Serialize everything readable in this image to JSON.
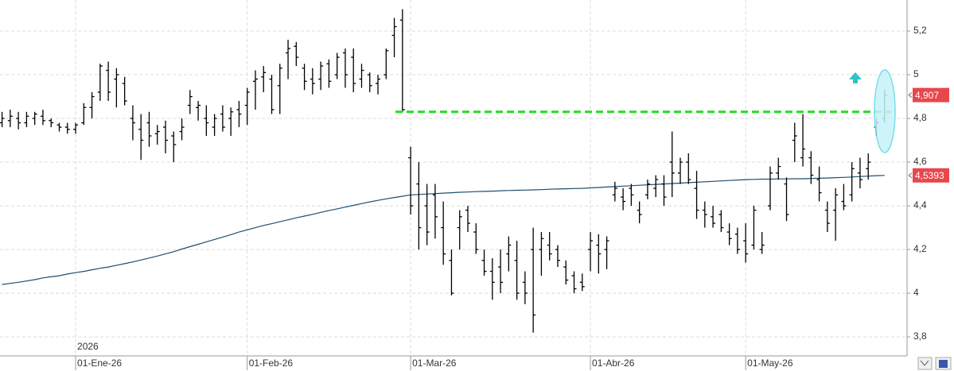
{
  "chart_data": {
    "type": "ohlc",
    "annotation": "2026",
    "categories": [
      null,
      null,
      null,
      null,
      null,
      null,
      null,
      null,
      null,
      "01-Ene-26",
      null,
      null,
      null,
      null,
      null,
      null,
      null,
      null,
      null,
      null,
      null,
      null,
      null,
      null,
      null,
      null,
      null,
      null,
      null,
      null,
      "01-Feb-26",
      null,
      null,
      null,
      null,
      null,
      null,
      null,
      null,
      null,
      null,
      null,
      null,
      null,
      null,
      null,
      null,
      null,
      null,
      null,
      "01-Mar-26",
      null,
      null,
      null,
      null,
      null,
      null,
      null,
      null,
      null,
      null,
      null,
      null,
      null,
      null,
      null,
      null,
      null,
      null,
      null,
      null,
      null,
      "01-Abr-26",
      null,
      null,
      null,
      null,
      null,
      null,
      null,
      null,
      null,
      null,
      null,
      null,
      null,
      null,
      null,
      null,
      null,
      null,
      "01-May-26",
      null,
      null,
      null,
      null,
      null,
      null,
      null,
      null,
      null,
      null,
      null,
      null,
      null,
      null,
      null,
      null,
      null
    ],
    "open": [
      4.78,
      4.79,
      4.8,
      4.78,
      4.8,
      4.81,
      4.79,
      4.77,
      4.76,
      4.75,
      4.78,
      4.85,
      4.92,
      5.02,
      4.98,
      4.96,
      4.8,
      4.75,
      4.78,
      4.73,
      4.76,
      4.72,
      4.74,
      4.86,
      4.85,
      4.8,
      4.76,
      4.82,
      4.8,
      4.84,
      4.86,
      4.97,
      4.99,
      4.98,
      4.95,
      5.1,
      5.13,
      5.03,
      4.98,
      4.98,
      5.05,
      5.0,
      5.1,
      5.08,
      4.98,
      5.0,
      4.96,
      5.0,
      5.18,
      5.25,
      4.62,
      4.5,
      4.4,
      4.45,
      4.3,
      4.15,
      4.3,
      4.38,
      4.28,
      4.15,
      4.1,
      4.12,
      4.18,
      4.15,
      4.05,
      4.2,
      4.2,
      4.22,
      4.2,
      4.12,
      4.08,
      4.05,
      4.2,
      4.22,
      4.2,
      4.45,
      4.44,
      4.48,
      4.38,
      4.45,
      4.48,
      4.5,
      4.6,
      4.55,
      4.6,
      4.48,
      4.38,
      4.35,
      4.36,
      4.28,
      4.27,
      4.24,
      4.22,
      4.2,
      4.4,
      4.55,
      4.5,
      4.7,
      4.62,
      4.62,
      4.52,
      4.38,
      4.38,
      4.42,
      4.45,
      4.55,
      4.57,
      4.76,
      4.8
    ],
    "high": [
      4.83,
      4.84,
      4.83,
      4.83,
      4.83,
      4.84,
      4.8,
      4.78,
      4.78,
      4.78,
      4.87,
      4.92,
      5.05,
      5.06,
      5.03,
      4.99,
      4.86,
      4.82,
      4.83,
      4.77,
      4.79,
      4.74,
      4.8,
      4.93,
      4.88,
      4.86,
      4.82,
      4.86,
      4.85,
      4.88,
      4.94,
      5.02,
      5.04,
      5.0,
      5.05,
      5.16,
      5.15,
      5.05,
      5.03,
      5.06,
      5.07,
      5.1,
      5.12,
      5.12,
      5.05,
      5.01,
      5.0,
      5.12,
      5.26,
      5.3,
      4.67,
      4.6,
      4.5,
      4.5,
      4.42,
      4.2,
      4.38,
      4.4,
      4.32,
      4.2,
      4.16,
      4.2,
      4.26,
      4.24,
      4.1,
      4.3,
      4.28,
      4.28,
      4.22,
      4.15,
      4.1,
      4.09,
      4.28,
      4.27,
      4.26,
      4.51,
      4.48,
      4.5,
      4.42,
      4.52,
      4.54,
      4.54,
      4.74,
      4.62,
      4.64,
      4.56,
      4.42,
      4.4,
      4.38,
      4.32,
      4.3,
      4.32,
      4.4,
      4.28,
      4.58,
      4.62,
      4.53,
      4.78,
      4.82,
      4.65,
      4.58,
      4.42,
      4.48,
      4.5,
      4.6,
      4.62,
      4.64,
      4.8,
      4.93
    ],
    "low": [
      4.76,
      4.76,
      4.75,
      4.76,
      4.77,
      4.77,
      4.76,
      4.74,
      4.73,
      4.73,
      4.77,
      4.8,
      4.88,
      4.88,
      4.85,
      4.86,
      4.7,
      4.61,
      4.67,
      4.68,
      4.64,
      4.6,
      4.7,
      4.82,
      4.79,
      4.72,
      4.72,
      4.74,
      4.72,
      4.76,
      4.77,
      4.84,
      4.92,
      4.82,
      4.82,
      4.98,
      5.04,
      4.93,
      4.91,
      4.93,
      4.94,
      4.98,
      4.94,
      4.92,
      4.94,
      4.92,
      4.91,
      4.98,
      5.08,
      4.83,
      4.36,
      4.2,
      4.22,
      4.25,
      4.13,
      3.99,
      4.2,
      4.28,
      4.18,
      4.08,
      3.97,
      4.0,
      4.1,
      3.97,
      3.95,
      3.82,
      4.08,
      4.15,
      4.12,
      4.04,
      4.0,
      4.01,
      4.1,
      4.09,
      4.11,
      4.42,
      4.38,
      4.4,
      4.32,
      4.43,
      4.44,
      4.4,
      4.44,
      4.5,
      4.5,
      4.34,
      4.3,
      4.3,
      4.28,
      4.22,
      4.18,
      4.14,
      4.2,
      4.18,
      4.38,
      4.52,
      4.33,
      4.6,
      4.58,
      4.5,
      4.42,
      4.28,
      4.24,
      4.38,
      4.42,
      4.48,
      4.52,
      4.72,
      4.78
    ],
    "close": [
      4.8,
      4.81,
      4.78,
      4.81,
      4.82,
      4.79,
      4.78,
      4.76,
      4.75,
      4.77,
      4.85,
      4.9,
      5.04,
      4.92,
      5.0,
      4.88,
      4.78,
      4.7,
      4.72,
      4.74,
      4.7,
      4.68,
      4.76,
      4.9,
      4.86,
      4.78,
      4.8,
      4.76,
      4.83,
      4.82,
      4.92,
      4.98,
      5.01,
      4.84,
      5.03,
      5.12,
      5.08,
      4.97,
      4.96,
      5.04,
      4.97,
      5.08,
      5.0,
      4.96,
      5.02,
      4.95,
      4.98,
      5.11,
      5.22,
      4.84,
      4.4,
      4.3,
      4.28,
      4.35,
      4.18,
      4.0,
      4.35,
      4.32,
      4.2,
      4.1,
      4.05,
      4.05,
      4.22,
      4.0,
      4.0,
      3.9,
      4.25,
      4.18,
      4.15,
      4.06,
      4.02,
      4.03,
      4.24,
      4.18,
      4.24,
      4.48,
      4.42,
      4.45,
      4.36,
      4.5,
      4.52,
      4.44,
      4.55,
      4.6,
      4.52,
      4.38,
      4.36,
      4.32,
      4.3,
      4.25,
      4.2,
      4.18,
      4.38,
      4.22,
      4.55,
      4.58,
      4.36,
      4.72,
      4.66,
      4.54,
      4.46,
      4.32,
      4.45,
      4.4,
      4.57,
      4.52,
      4.6,
      4.78,
      4.907
    ],
    "bar_color": "#000000",
    "moving_average": {
      "color": "#1f4e6e",
      "values": [
        4.04,
        4.045,
        4.05,
        4.056,
        4.062,
        4.07,
        4.075,
        4.08,
        4.088,
        4.094,
        4.1,
        4.107,
        4.114,
        4.12,
        4.128,
        4.135,
        4.143,
        4.152,
        4.161,
        4.17,
        4.18,
        4.19,
        4.202,
        4.213,
        4.224,
        4.235,
        4.246,
        4.257,
        4.268,
        4.28,
        4.29,
        4.3,
        4.31,
        4.318,
        4.327,
        4.336,
        4.345,
        4.353,
        4.361,
        4.37,
        4.378,
        4.386,
        4.394,
        4.402,
        4.41,
        4.418,
        4.425,
        4.432,
        4.438,
        4.444,
        4.45,
        4.452,
        4.454,
        4.456,
        4.458,
        4.46,
        4.462,
        4.463,
        4.465,
        4.466,
        4.467,
        4.469,
        4.47,
        4.471,
        4.472,
        4.473,
        4.474,
        4.476,
        4.477,
        4.478,
        4.479,
        4.48,
        4.482,
        4.484,
        4.486,
        4.488,
        4.49,
        4.492,
        4.494,
        4.496,
        4.498,
        4.5,
        4.502,
        4.504,
        4.506,
        4.508,
        4.51,
        4.512,
        4.514,
        4.516,
        4.518,
        4.52,
        4.521,
        4.522,
        4.522,
        4.523,
        4.523,
        4.524,
        4.524,
        4.525,
        4.526,
        4.527,
        4.529,
        4.53,
        4.532,
        4.534,
        4.536,
        4.538,
        4.5393
      ]
    },
    "reference_line": {
      "value": 4.83,
      "color": "#22dd22"
    },
    "price_tags": [
      {
        "value": 4.907,
        "label": "4,907",
        "color": "#e8474c"
      },
      {
        "value": 4.5393,
        "label": "4,5393",
        "color": "#e8474c"
      }
    ],
    "ylim": [
      3.713,
      5.342
    ],
    "yticks": [
      {
        "value": 3.8,
        "label": "3,8"
      },
      4,
      {
        "value": 4.2,
        "label": "4,2"
      },
      {
        "value": 4.4,
        "label": "4,4"
      },
      {
        "value": 4.6,
        "label": "4,6"
      },
      {
        "value": 4.8,
        "label": "4,8"
      },
      5,
      {
        "value": 5.2,
        "label": "5,2"
      }
    ],
    "grid": true
  }
}
